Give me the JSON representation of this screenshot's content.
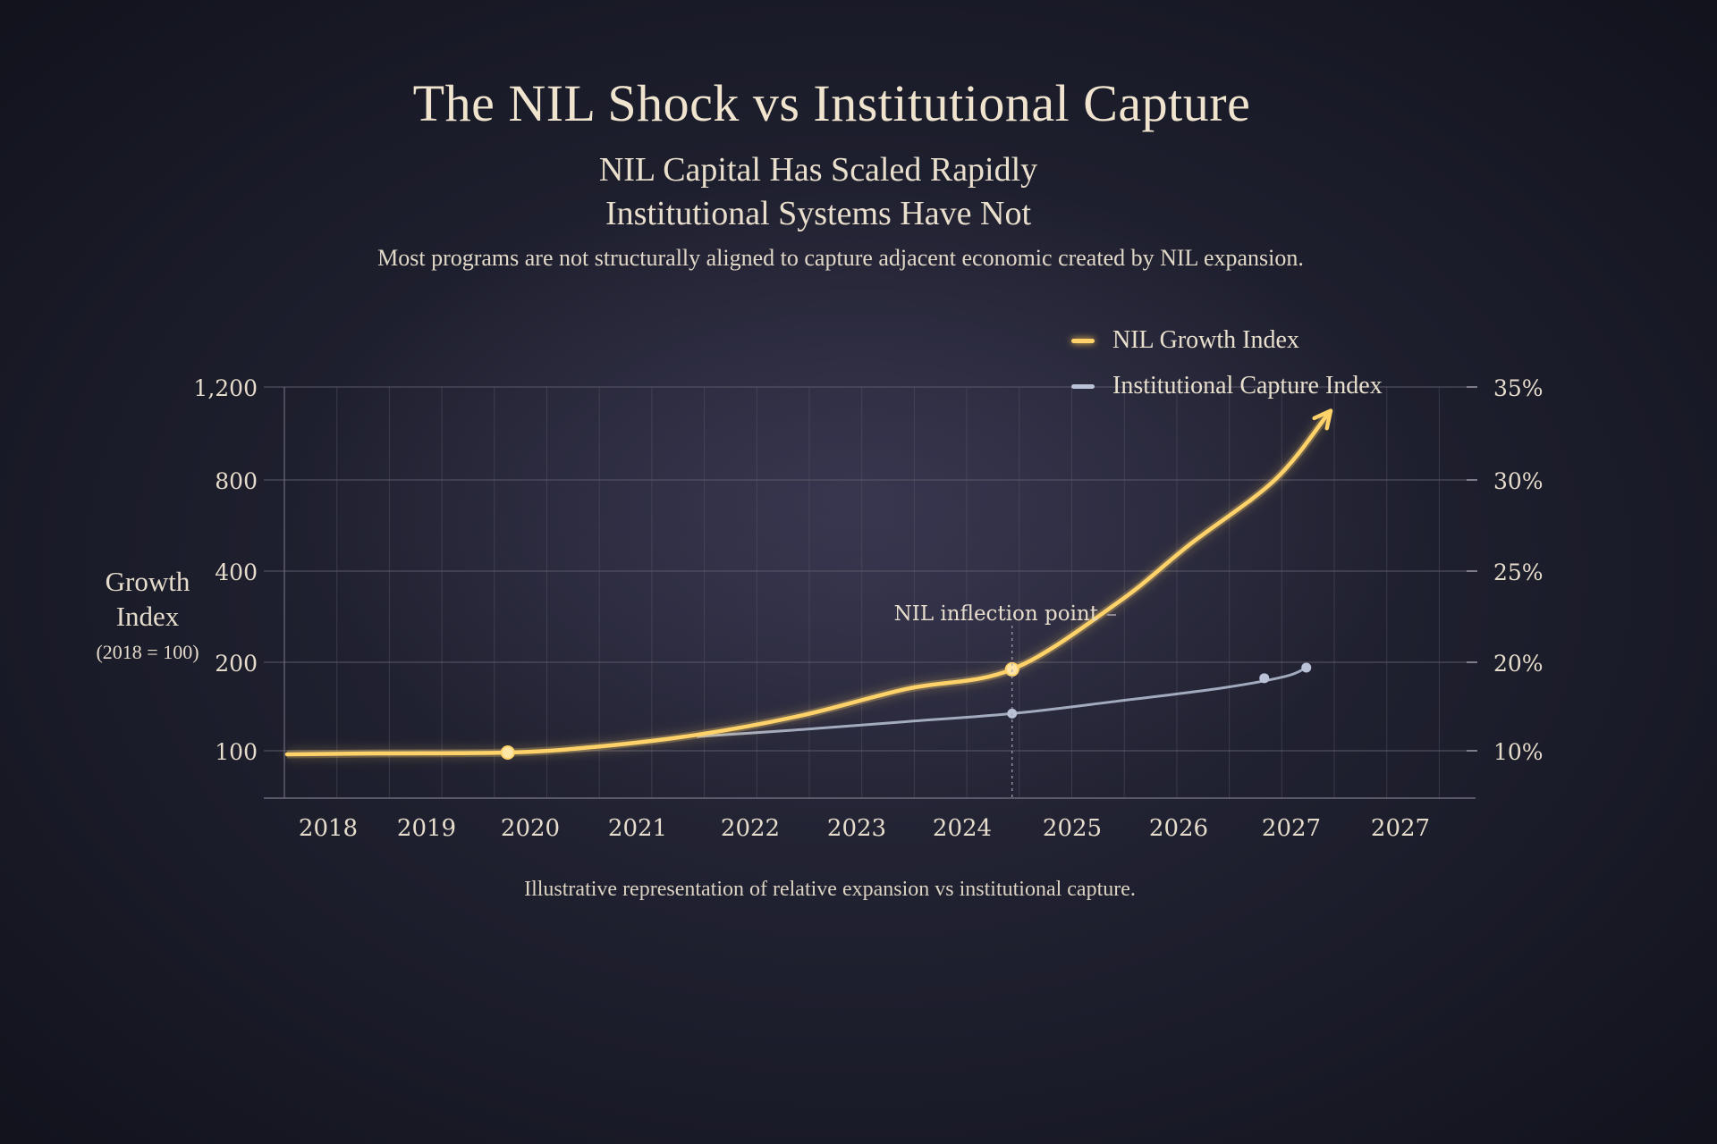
{
  "title": "The NIL Shock vs Institutional Capture",
  "subtitle_line1": "NIL Capital Has Scaled Rapidly",
  "subtitle_line2": "Institutional Systems Have Not",
  "description": "Most programs are not structurally aligned to capture adjacent economic created by NIL expansion.",
  "footnote": "Illustrative representation of relative expansion vs institutional capture.",
  "colors": {
    "nil": "#ffd36a",
    "institutional": "#b9c2d6",
    "grid": "#5a596b"
  },
  "chart_data": {
    "type": "line",
    "y_axis_title": [
      "Growth",
      "Index",
      "(2018 = 100)"
    ],
    "y_ticks_left": [
      "1,200",
      "800",
      "400",
      "200",
      "100"
    ],
    "y_ticks_right": [
      "35%",
      "30%",
      "25%",
      "20%",
      "10%"
    ],
    "categories": [
      "2018",
      "2019",
      "2020",
      "2021",
      "2022",
      "2023",
      "2024",
      "2025",
      "2026",
      "2027",
      "2027"
    ],
    "annotation": "NIL inflection point",
    "series": [
      {
        "name": "NIL Growth Index",
        "axis": "left",
        "x": [
          2017.6,
          2018.5,
          2019.7,
          2020.5,
          2021.5,
          2022.5,
          2023.5,
          2024.5,
          2025.5,
          2026.2,
          2027.0,
          2027.5
        ],
        "values": [
          96,
          97,
          98,
          104,
          118,
          140,
          170,
          192,
          330,
          520,
          800,
          1080
        ],
        "markers": [
          [
            2019.7,
            98
          ],
          [
            2024.5,
            192
          ]
        ],
        "arrow_end": true
      },
      {
        "name": "Institutional Capture Index",
        "axis": "right",
        "x": [
          2021.5,
          2022.5,
          2023.5,
          2024.5,
          2025.5,
          2026.5,
          2027.1,
          2027.3
        ],
        "values": [
          11.6,
          12.4,
          13.3,
          14.2,
          15.6,
          17.1,
          18.4,
          19.4
        ],
        "markers": [
          [
            2024.5,
            14.2
          ],
          [
            2026.9,
            18.2
          ],
          [
            2027.3,
            19.4
          ]
        ]
      }
    ]
  }
}
